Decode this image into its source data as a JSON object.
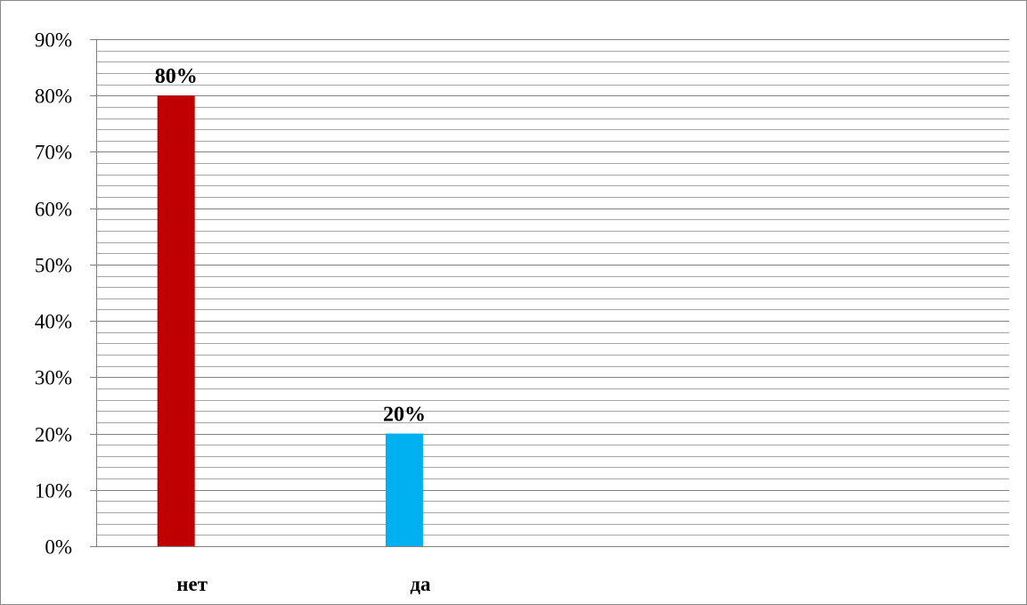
{
  "chart_data": {
    "type": "bar",
    "categories": [
      "нет",
      "да"
    ],
    "values": [
      80,
      20
    ],
    "data_labels": [
      "80%",
      "20%"
    ],
    "bar_colors": [
      "#c00000",
      "#00b0f0"
    ],
    "ylim": [
      0,
      90
    ],
    "y_major_step": 10,
    "y_minor_step": 2,
    "y_tick_labels": [
      "0%",
      "10%",
      "20%",
      "30%",
      "40%",
      "50%",
      "60%",
      "70%",
      "80%",
      "90%"
    ],
    "title": "",
    "xlabel": "",
    "ylabel": "",
    "grid": true,
    "legend": "none",
    "total_category_slots": 4
  }
}
